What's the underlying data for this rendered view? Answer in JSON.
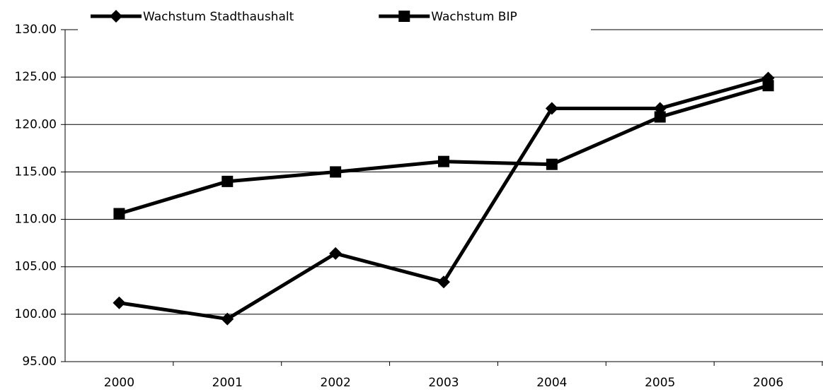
{
  "chart_data": {
    "type": "line",
    "categories": [
      "2000",
      "2001",
      "2002",
      "2003",
      "2004",
      "2005",
      "2006"
    ],
    "series": [
      {
        "name": "Wachstum Stadthaushalt",
        "color": "#000000",
        "marker": "diamond",
        "values": [
          101.2,
          99.5,
          106.4,
          103.4,
          121.7,
          121.7,
          124.9
        ]
      },
      {
        "name": "Wachstum BIP",
        "color": "#000000",
        "marker": "square",
        "values": [
          110.6,
          114.0,
          115.0,
          116.1,
          115.8,
          120.8,
          124.1
        ]
      }
    ],
    "ylim": [
      95,
      130
    ],
    "yticks": [
      {
        "value": 95,
        "label": "95.00"
      },
      {
        "value": 100,
        "label": "100.00"
      },
      {
        "value": 105,
        "label": "105.00"
      },
      {
        "value": 110,
        "label": "110.00"
      },
      {
        "value": 115,
        "label": "115.00"
      },
      {
        "value": 120,
        "label": "120.00"
      },
      {
        "value": 125,
        "label": "125.00"
      },
      {
        "value": 130,
        "label": "130.00"
      }
    ],
    "grid": true,
    "legend": "top"
  }
}
